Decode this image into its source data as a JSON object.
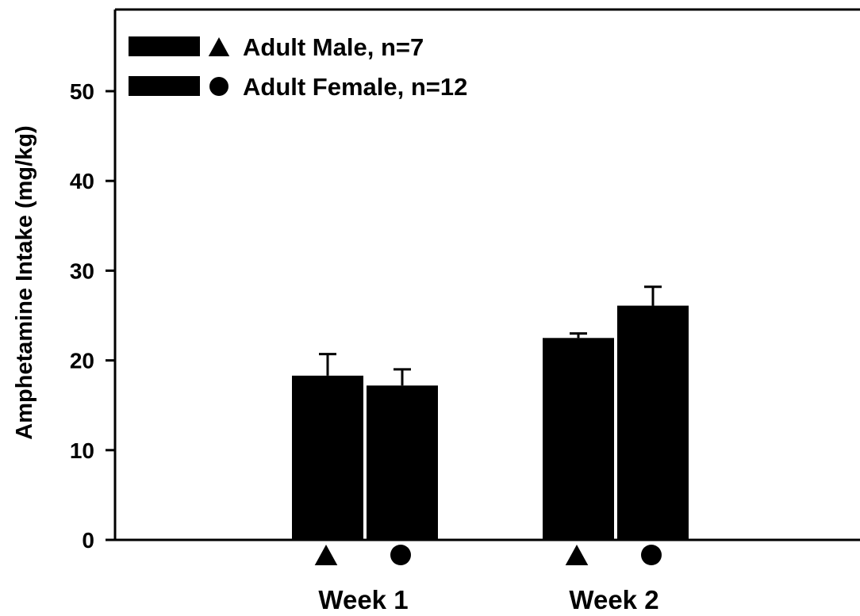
{
  "chart_data": {
    "type": "bar",
    "categories": [
      "Week 1",
      "Week 2"
    ],
    "series": [
      {
        "name": "Adult Male, n=7",
        "marker": "triangle",
        "values": [
          18.3,
          22.5
        ],
        "errors": [
          2.4,
          0.5
        ]
      },
      {
        "name": "Adult Female, n=12",
        "marker": "circle",
        "values": [
          17.2,
          26.1
        ],
        "errors": [
          1.8,
          2.1
        ]
      }
    ],
    "ylabel": "Amphetamine Intake (mg/kg)",
    "xlabel": "",
    "ylim": [
      0,
      56
    ],
    "yticks": [
      0,
      10,
      20,
      30,
      40,
      50
    ],
    "grid": false,
    "legend_position": "top-left",
    "colors": {
      "bar": "#000000",
      "axis": "#000000",
      "background": "#ffffff"
    }
  }
}
